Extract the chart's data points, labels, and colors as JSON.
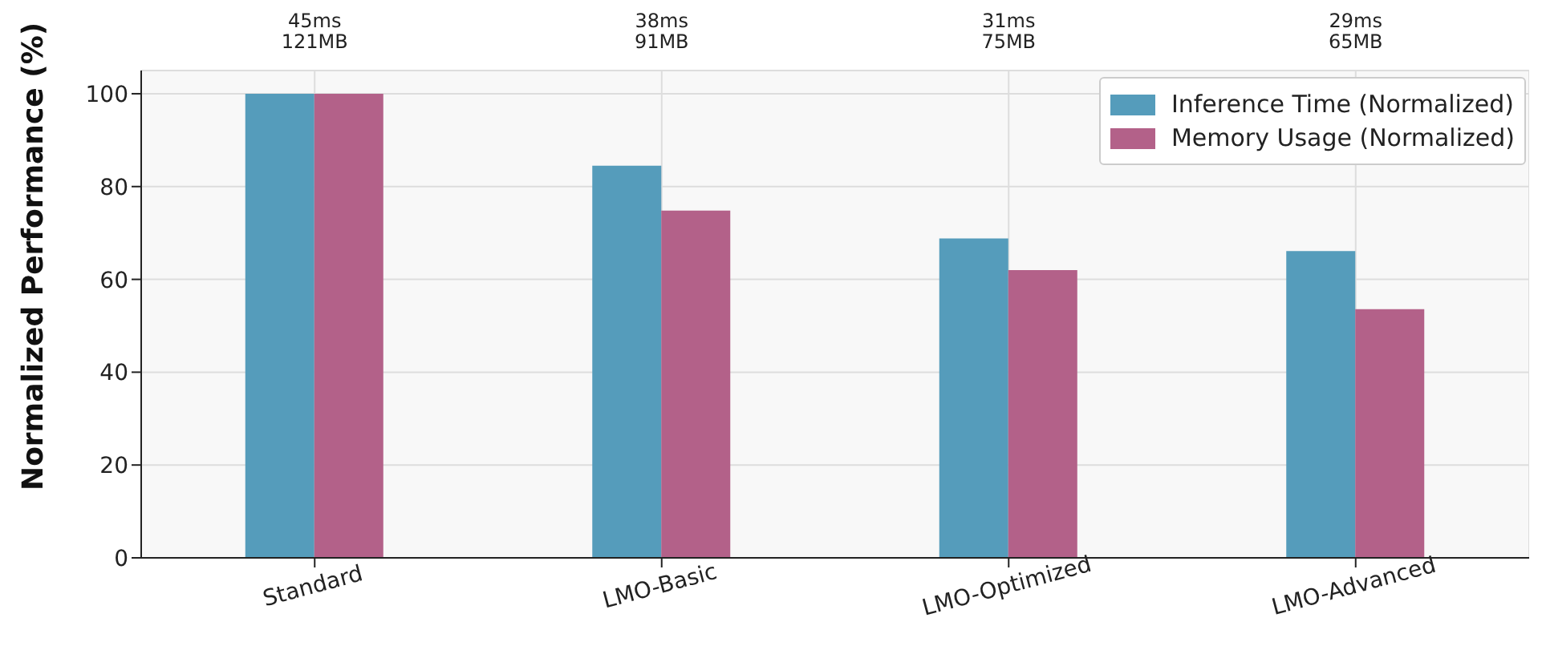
{
  "chart_data": {
    "type": "bar",
    "ylabel": "Normalized Performance (%)",
    "categories": [
      "Standard",
      "LMO-Basic",
      "LMO-Optimized",
      "LMO-Advanced"
    ],
    "series": [
      {
        "name": "Inference Time (Normalized)",
        "color": "#559cbb",
        "values": [
          100,
          84.5,
          68.8,
          66.1
        ]
      },
      {
        "name": "Memory Usage (Normalized)",
        "color": "#b36189",
        "values": [
          100,
          74.8,
          62,
          53.6
        ]
      }
    ],
    "ylim": [
      0,
      105
    ],
    "yticks": [
      0,
      20,
      40,
      60,
      80,
      100
    ],
    "grid": true,
    "legend": "top right",
    "annotations": [
      "45ms\n121MB",
      "38ms\n91MB",
      "31ms\n75MB",
      "29ms\n65MB"
    ]
  }
}
